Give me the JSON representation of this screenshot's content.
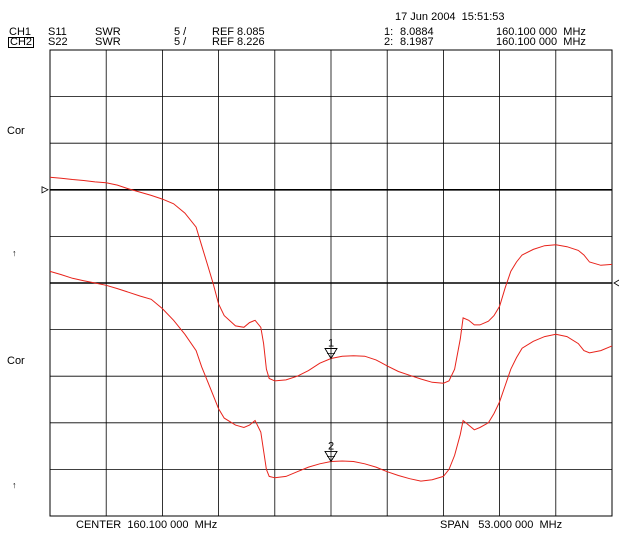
{
  "timestamp": "17 Jun 2004  15:51:53",
  "channels": [
    {
      "id": "CH1",
      "param": "S11",
      "format": "SWR",
      "scale": "5 /",
      "ref": "REF 8.085",
      "marker_label": "1:",
      "marker_value": "8.0884",
      "marker_freq": "160.100 000  MHz"
    },
    {
      "id": "CH2",
      "param": "S22",
      "format": "SWR",
      "scale": "5 /",
      "ref": "REF 8.226",
      "marker_label": "2:",
      "marker_value": "8.1987",
      "marker_freq": "160.100 000  MHz"
    }
  ],
  "side_labels": [
    "Cor",
    "↑",
    "Cor",
    "↑"
  ],
  "footer": {
    "center": "CENTER  160.100 000  MHz",
    "span": "SPAN   53.000 000  MHz"
  },
  "chart_data": {
    "type": "line",
    "grid": true,
    "divisions_x": 10,
    "divisions_y": 10,
    "trace_color": "#e8231b",
    "frequency_axis": {
      "center_mhz": 160.1,
      "span_mhz": 53.0
    },
    "series": [
      {
        "marker": "1",
        "points": [
          [
            0,
            2.73
          ],
          [
            0.2,
            2.75
          ],
          [
            0.4,
            2.78
          ],
          [
            0.6,
            2.8
          ],
          [
            0.8,
            2.83
          ],
          [
            1,
            2.85
          ],
          [
            1.2,
            2.9
          ],
          [
            1.4,
            2.98
          ],
          [
            1.6,
            3.05
          ],
          [
            1.8,
            3.12
          ],
          [
            2,
            3.2
          ],
          [
            2.2,
            3.3
          ],
          [
            2.4,
            3.5
          ],
          [
            2.6,
            3.8
          ],
          [
            2.7,
            4.2
          ],
          [
            2.8,
            4.6
          ],
          [
            2.9,
            5.0
          ],
          [
            3.0,
            5.45
          ],
          [
            3.1,
            5.7
          ],
          [
            3.3,
            5.92
          ],
          [
            3.45,
            5.95
          ],
          [
            3.55,
            5.85
          ],
          [
            3.65,
            5.8
          ],
          [
            3.75,
            5.95
          ],
          [
            3.8,
            6.3
          ],
          [
            3.85,
            6.85
          ],
          [
            3.9,
            7.05
          ],
          [
            4.0,
            7.1
          ],
          [
            4.2,
            7.08
          ],
          [
            4.4,
            7.0
          ],
          [
            4.6,
            6.88
          ],
          [
            4.8,
            6.72
          ],
          [
            5.0,
            6.62
          ],
          [
            5.2,
            6.57
          ],
          [
            5.4,
            6.56
          ],
          [
            5.6,
            6.57
          ],
          [
            5.8,
            6.65
          ],
          [
            6.0,
            6.78
          ],
          [
            6.2,
            6.9
          ],
          [
            6.4,
            6.98
          ],
          [
            6.6,
            7.06
          ],
          [
            6.8,
            7.13
          ],
          [
            7.0,
            7.15
          ],
          [
            7.1,
            7.1
          ],
          [
            7.2,
            6.85
          ],
          [
            7.3,
            6.2
          ],
          [
            7.35,
            5.75
          ],
          [
            7.45,
            5.8
          ],
          [
            7.55,
            5.9
          ],
          [
            7.65,
            5.9
          ],
          [
            7.8,
            5.82
          ],
          [
            7.9,
            5.7
          ],
          [
            8.0,
            5.5
          ],
          [
            8.1,
            5.1
          ],
          [
            8.2,
            4.75
          ],
          [
            8.3,
            4.55
          ],
          [
            8.4,
            4.4
          ],
          [
            8.6,
            4.28
          ],
          [
            8.8,
            4.2
          ],
          [
            9.0,
            4.18
          ],
          [
            9.2,
            4.22
          ],
          [
            9.4,
            4.3
          ],
          [
            9.5,
            4.4
          ],
          [
            9.6,
            4.55
          ],
          [
            9.8,
            4.62
          ],
          [
            10,
            4.6
          ]
        ]
      },
      {
        "marker": "2",
        "points": [
          [
            0,
            4.75
          ],
          [
            0.2,
            4.82
          ],
          [
            0.4,
            4.9
          ],
          [
            0.6,
            4.95
          ],
          [
            0.8,
            5.0
          ],
          [
            1,
            5.05
          ],
          [
            1.2,
            5.12
          ],
          [
            1.4,
            5.2
          ],
          [
            1.6,
            5.28
          ],
          [
            1.8,
            5.35
          ],
          [
            2,
            5.55
          ],
          [
            2.2,
            5.8
          ],
          [
            2.4,
            6.1
          ],
          [
            2.6,
            6.45
          ],
          [
            2.7,
            6.8
          ],
          [
            2.8,
            7.1
          ],
          [
            2.9,
            7.4
          ],
          [
            3.0,
            7.7
          ],
          [
            3.1,
            7.9
          ],
          [
            3.3,
            8.05
          ],
          [
            3.45,
            8.1
          ],
          [
            3.55,
            8.05
          ],
          [
            3.65,
            7.95
          ],
          [
            3.75,
            8.2
          ],
          [
            3.8,
            8.6
          ],
          [
            3.85,
            9.0
          ],
          [
            3.9,
            9.15
          ],
          [
            4.0,
            9.18
          ],
          [
            4.2,
            9.15
          ],
          [
            4.4,
            9.05
          ],
          [
            4.6,
            8.95
          ],
          [
            4.8,
            8.88
          ],
          [
            5.0,
            8.83
          ],
          [
            5.2,
            8.82
          ],
          [
            5.4,
            8.83
          ],
          [
            5.6,
            8.88
          ],
          [
            5.8,
            8.95
          ],
          [
            6.0,
            9.05
          ],
          [
            6.2,
            9.13
          ],
          [
            6.4,
            9.2
          ],
          [
            6.6,
            9.25
          ],
          [
            6.8,
            9.22
          ],
          [
            7.0,
            9.15
          ],
          [
            7.1,
            9.0
          ],
          [
            7.2,
            8.7
          ],
          [
            7.3,
            8.25
          ],
          [
            7.35,
            7.95
          ],
          [
            7.45,
            8.05
          ],
          [
            7.55,
            8.15
          ],
          [
            7.65,
            8.1
          ],
          [
            7.8,
            8.0
          ],
          [
            7.9,
            7.8
          ],
          [
            8.0,
            7.55
          ],
          [
            8.1,
            7.2
          ],
          [
            8.2,
            6.85
          ],
          [
            8.3,
            6.6
          ],
          [
            8.4,
            6.4
          ],
          [
            8.6,
            6.25
          ],
          [
            8.8,
            6.15
          ],
          [
            9.0,
            6.1
          ],
          [
            9.2,
            6.15
          ],
          [
            9.4,
            6.3
          ],
          [
            9.5,
            6.45
          ],
          [
            9.6,
            6.5
          ],
          [
            9.8,
            6.45
          ],
          [
            10,
            6.35
          ]
        ]
      }
    ],
    "markers": [
      {
        "label": "1",
        "x_div": 5.0,
        "series": 0
      },
      {
        "label": "2",
        "x_div": 5.0,
        "series": 1
      }
    ],
    "reference_lines": [
      3.0,
      5.0
    ]
  }
}
